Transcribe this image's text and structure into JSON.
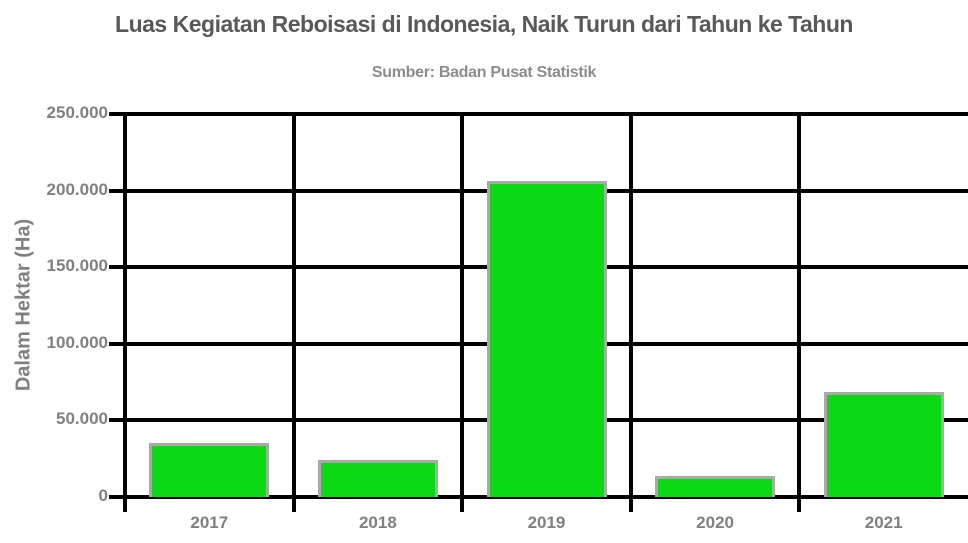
{
  "chart_data": {
    "type": "bar",
    "title": "Luas Kegiatan Reboisasi di Indonesia, Naik Turun dari Tahun ke Tahun",
    "subtitle": "Sumber: Badan Pusat Statistik",
    "categories": [
      "2017",
      "2018",
      "2019",
      "2020",
      "2021"
    ],
    "values": [
      35000,
      24000,
      206000,
      14000,
      68500
    ],
    "xlabel": "",
    "ylabel": "Dalam Hektar (Ha)",
    "ylim": [
      0,
      250000
    ],
    "yticks": [
      0,
      50000,
      100000,
      150000,
      200000,
      250000
    ],
    "ytick_labels": [
      "0",
      "50.000",
      "100.000",
      "150.000",
      "200.000",
      "250.000"
    ],
    "grid": true,
    "legend": false,
    "colors": {
      "bar_fill": "#0bd916",
      "bar_border": "#a9a9a9",
      "grid": "#000000",
      "title_text": "#595959",
      "subtitle_text": "#8c8c8c",
      "axis_text": "#808080",
      "background": "#ffffff"
    }
  }
}
